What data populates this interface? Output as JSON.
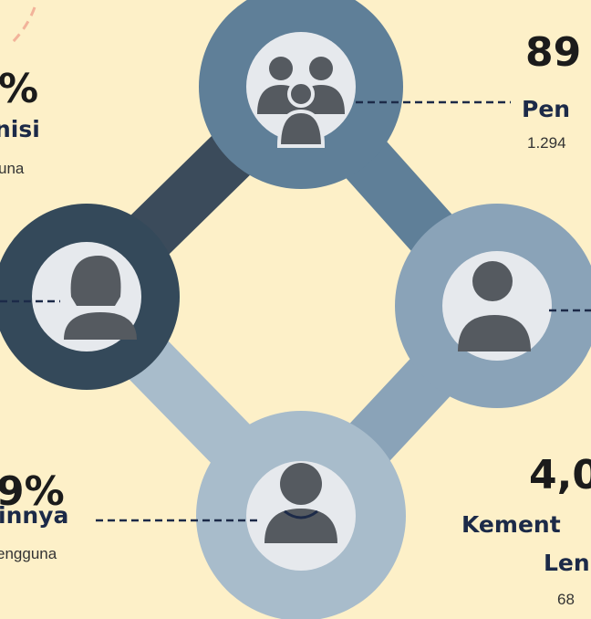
{
  "top_left": {
    "percent": "%",
    "label": "nisi",
    "users": "una"
  },
  "top_right": {
    "percent": "89",
    "label": "Pen",
    "users": "1.294"
  },
  "bottom_left": {
    "percent": "9%",
    "label": "innya",
    "users": "engguna"
  },
  "bottom_right": {
    "percent": "4,0",
    "label": "Kement",
    "label2": "Len",
    "users": "68"
  }
}
